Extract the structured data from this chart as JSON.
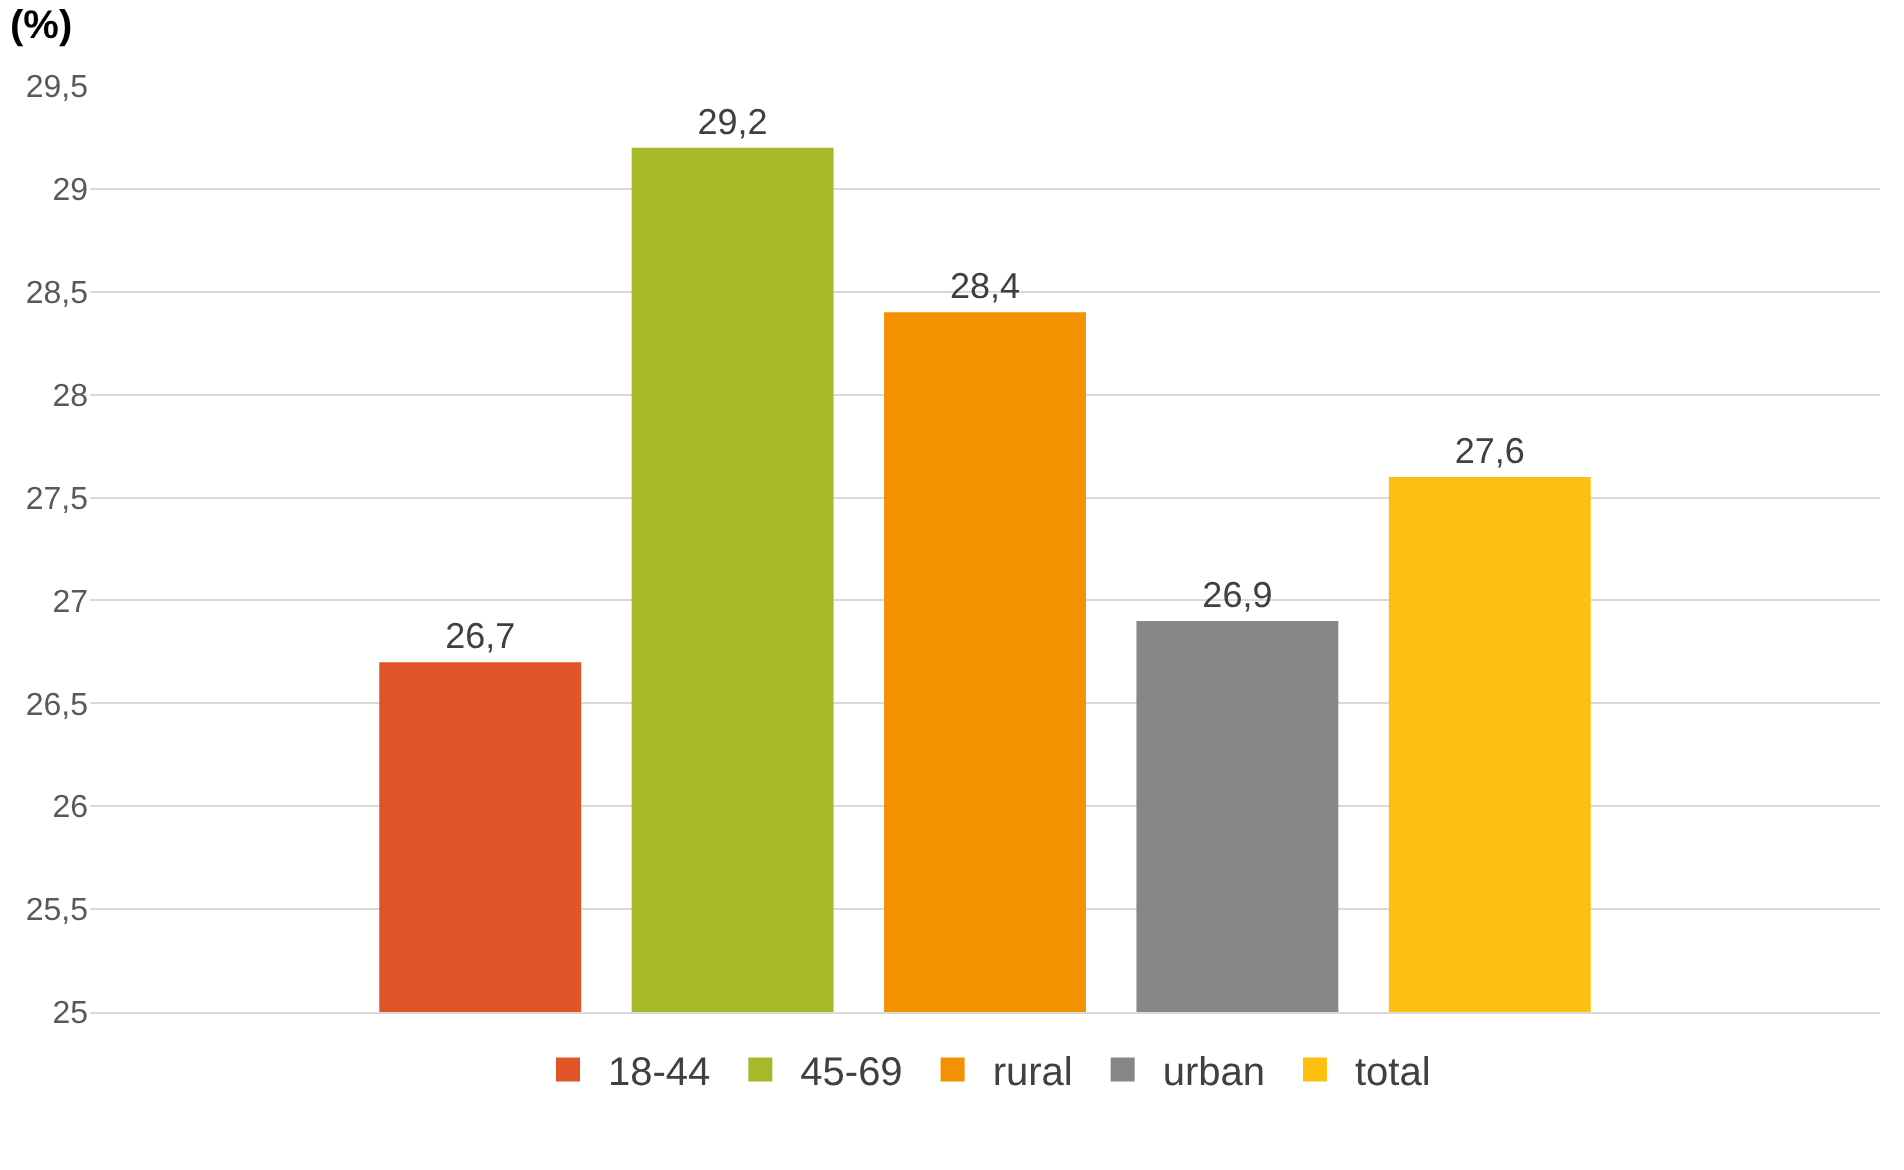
{
  "chart_data": {
    "type": "bar",
    "ylabel": "(%)",
    "categories": [
      null
    ],
    "series": [
      {
        "name": "18-44",
        "color": "#e05527",
        "values": [
          26.7
        ],
        "value_labels": [
          "26,7"
        ]
      },
      {
        "name": "45-69",
        "color": "#a8b927",
        "values": [
          29.2
        ],
        "value_labels": [
          "29,2"
        ]
      },
      {
        "name": "rural",
        "color": "#f39200",
        "values": [
          28.4
        ],
        "value_labels": [
          "28,4"
        ]
      },
      {
        "name": "urban",
        "color": "#878787",
        "values": [
          26.9
        ],
        "value_labels": [
          "26,9"
        ]
      },
      {
        "name": "total",
        "color": "#fdc010",
        "values": [
          27.6
        ],
        "value_labels": [
          "27,6"
        ]
      }
    ],
    "ylim": [
      25,
      29.5
    ],
    "yticks": [
      25,
      {
        "value": 25.5,
        "label": "25,5"
      },
      26,
      {
        "value": 26.5,
        "label": "26,5"
      },
      27,
      {
        "value": 27.5,
        "label": "27,5"
      },
      28,
      {
        "value": 28.5,
        "label": "28,5"
      },
      29,
      {
        "value": 29.5,
        "label": "29,5"
      }
    ],
    "grid": "y",
    "legend": "bottom"
  }
}
